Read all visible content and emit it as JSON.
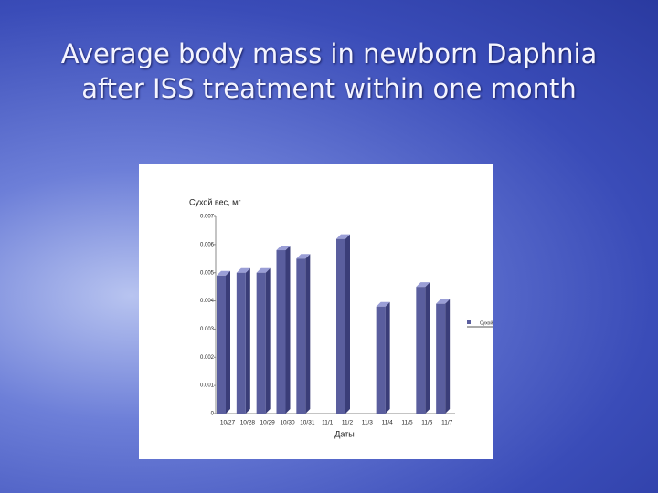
{
  "chart_data": {
    "type": "bar3d",
    "title": "Average body mass in newborn Daphnia after ISS treatment within one month",
    "y_label": "Сухой вес, мг",
    "x_label": "Даты",
    "categories": [
      "10/27",
      "10/28",
      "10/29",
      "10/30",
      "10/31",
      "11/1",
      "11/2",
      "11/3",
      "11/4",
      "11/5",
      "11/6",
      "11/7"
    ],
    "series": [
      {
        "name": "Сухой",
        "color": "#5a5e9e",
        "values": [
          0.0049,
          0.005,
          0.005,
          0.0058,
          0.0055,
          null,
          0.0062,
          null,
          0.0038,
          null,
          0.0045,
          0.0039
        ]
      }
    ],
    "ylim": [
      0,
      0.007
    ],
    "yticks": [
      0,
      0.001,
      0.002,
      0.003,
      0.004,
      0.005,
      0.006,
      0.007
    ]
  }
}
